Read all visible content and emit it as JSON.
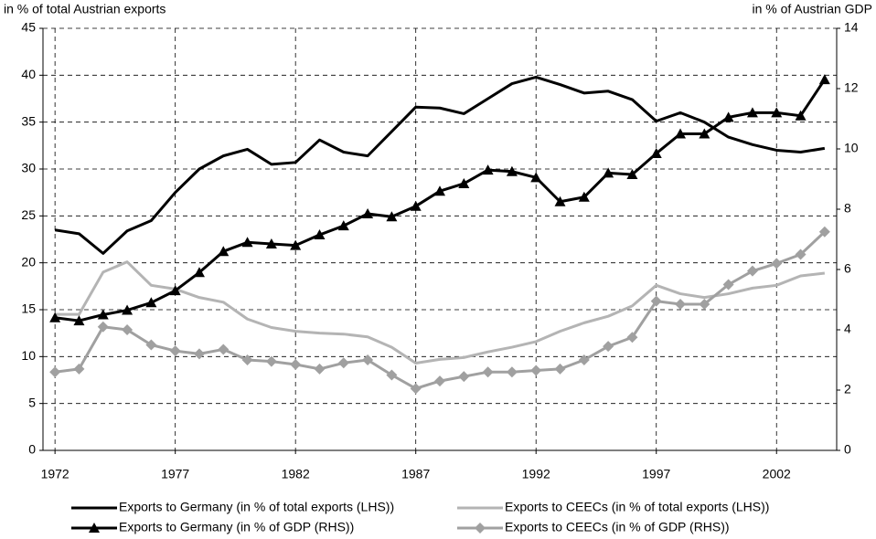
{
  "chart_data": {
    "type": "line",
    "y_label": "in % of total Austrian exports",
    "y2_label": "in % of  Austrian GDP",
    "x": [
      1972,
      1973,
      1974,
      1975,
      1976,
      1977,
      1978,
      1979,
      1980,
      1981,
      1982,
      1983,
      1984,
      1985,
      1986,
      1987,
      1988,
      1989,
      1990,
      1991,
      1992,
      1993,
      1994,
      1995,
      1996,
      1997,
      1998,
      1999,
      2000,
      2001,
      2002,
      2003,
      2004
    ],
    "xlim": [
      1971.5,
      2004.5
    ],
    "xticks": [
      1972,
      1977,
      1982,
      1987,
      1992,
      1997,
      2002
    ],
    "ylim": [
      0,
      45
    ],
    "yticks": [
      0,
      5,
      10,
      15,
      20,
      25,
      30,
      35,
      40,
      45
    ],
    "y2lim": [
      0,
      14
    ],
    "y2ticks": [
      0,
      2,
      4,
      6,
      8,
      10,
      12,
      14
    ],
    "grid": true,
    "legend": "bottom",
    "series": [
      {
        "name": "Exports to Germany (in % of total exports (LHS))",
        "color": "#000000",
        "axis": "y",
        "marker": "none",
        "values": [
          23.5,
          23.1,
          21.0,
          23.4,
          24.5,
          27.5,
          30.0,
          31.4,
          32.1,
          30.5,
          30.7,
          33.1,
          31.8,
          31.4,
          34.0,
          36.6,
          36.5,
          35.9,
          37.5,
          39.1,
          39.8,
          39.0,
          38.1,
          38.3,
          37.4,
          35.1,
          36.0,
          35.0,
          33.4,
          32.6,
          32.0,
          31.8,
          32.2
        ]
      },
      {
        "name": "Exports to CEECs (in % of total exports (LHS))",
        "color": "#b4b4b4",
        "axis": "y",
        "marker": "none",
        "values": [
          14.5,
          14.5,
          19.0,
          20.1,
          17.6,
          17.2,
          16.3,
          15.8,
          14.0,
          13.1,
          12.7,
          12.5,
          12.4,
          12.1,
          11.0,
          9.3,
          9.7,
          9.9,
          10.5,
          11.0,
          11.6,
          12.7,
          13.6,
          14.3,
          15.4,
          17.6,
          16.7,
          16.3,
          16.7,
          17.3,
          17.6,
          18.6,
          18.9
        ]
      },
      {
        "name": "Exports to Germany (in % of GDP (RHS))",
        "color": "#000000",
        "axis": "y2",
        "marker": "triangle",
        "values": [
          4.4,
          4.3,
          4.5,
          4.65,
          4.9,
          5.3,
          5.9,
          6.6,
          6.9,
          6.85,
          6.8,
          7.15,
          7.45,
          7.85,
          7.75,
          8.1,
          8.6,
          8.85,
          9.3,
          9.25,
          9.05,
          8.25,
          8.4,
          9.2,
          9.15,
          9.85,
          10.5,
          10.5,
          11.05,
          11.2,
          11.2,
          11.1,
          12.3
        ]
      },
      {
        "name": "Exports to CEECs (in % of GDP (RHS))",
        "color": "#a0a0a0",
        "axis": "y2",
        "marker": "diamond",
        "values": [
          2.6,
          2.7,
          4.1,
          4.0,
          3.5,
          3.3,
          3.2,
          3.35,
          3.0,
          2.95,
          2.85,
          2.7,
          2.9,
          3.0,
          2.5,
          2.05,
          2.3,
          2.45,
          2.6,
          2.6,
          2.65,
          2.7,
          3.0,
          3.45,
          3.75,
          4.95,
          4.85,
          4.85,
          5.5,
          5.95,
          6.2,
          6.5,
          7.25
        ]
      }
    ]
  }
}
